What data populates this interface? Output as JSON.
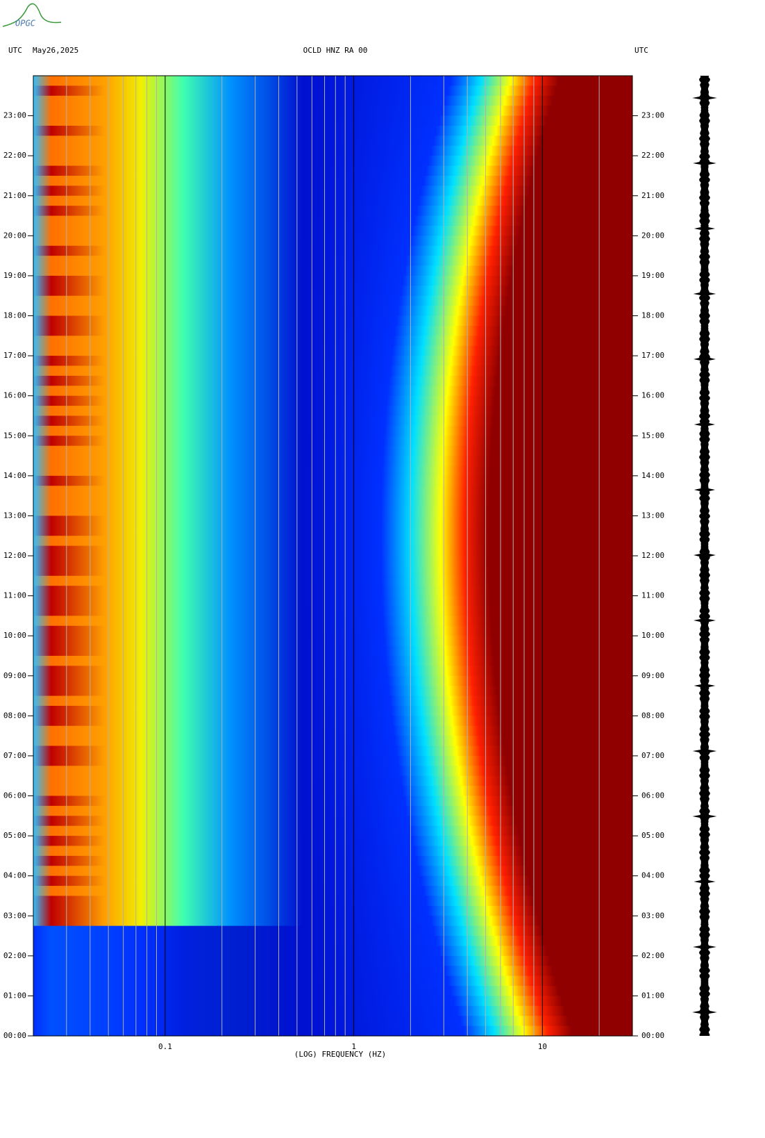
{
  "logo": "OPGC",
  "chart_data": {
    "type": "spectrogram",
    "header_left": "UTC",
    "date": "May26,2025",
    "title": "OCLD HNZ RA 00",
    "header_right": "UTC",
    "xlabel": "(LOG) FREQUENCY (HZ)",
    "xscale": "log",
    "xlim": [
      0.02,
      30
    ],
    "xticks": [
      0.1,
      1,
      10
    ],
    "xminorticks": [
      0.02,
      0.03,
      0.04,
      0.05,
      0.06,
      0.07,
      0.08,
      0.09,
      0.2,
      0.3,
      0.4,
      0.5,
      0.6,
      0.7,
      0.8,
      0.9,
      2,
      3,
      4,
      5,
      6,
      7,
      8,
      9,
      20,
      30
    ],
    "ylim": [
      0,
      24
    ],
    "yticks": [
      {
        "value": 0,
        "label": "00:00"
      },
      {
        "value": 1,
        "label": "01:00"
      },
      {
        "value": 2,
        "label": "02:00"
      },
      {
        "value": 3,
        "label": "03:00"
      },
      {
        "value": 4,
        "label": "04:00"
      },
      {
        "value": 5,
        "label": "05:00"
      },
      {
        "value": 6,
        "label": "06:00"
      },
      {
        "value": 7,
        "label": "07:00"
      },
      {
        "value": 8,
        "label": "08:00"
      },
      {
        "value": 9,
        "label": "09:00"
      },
      {
        "value": 10,
        "label": "10:00"
      },
      {
        "value": 11,
        "label": "11:00"
      },
      {
        "value": 12,
        "label": "12:00"
      },
      {
        "value": 13,
        "label": "13:00"
      },
      {
        "value": 14,
        "label": "14:00"
      },
      {
        "value": 15,
        "label": "15:00"
      },
      {
        "value": 16,
        "label": "16:00"
      },
      {
        "value": 17,
        "label": "17:00"
      },
      {
        "value": 18,
        "label": "18:00"
      },
      {
        "value": 19,
        "label": "19:00"
      },
      {
        "value": 20,
        "label": "20:00"
      },
      {
        "value": 21,
        "label": "21:00"
      },
      {
        "value": 22,
        "label": "22:00"
      },
      {
        "value": 23,
        "label": "23:00"
      }
    ]
  }
}
